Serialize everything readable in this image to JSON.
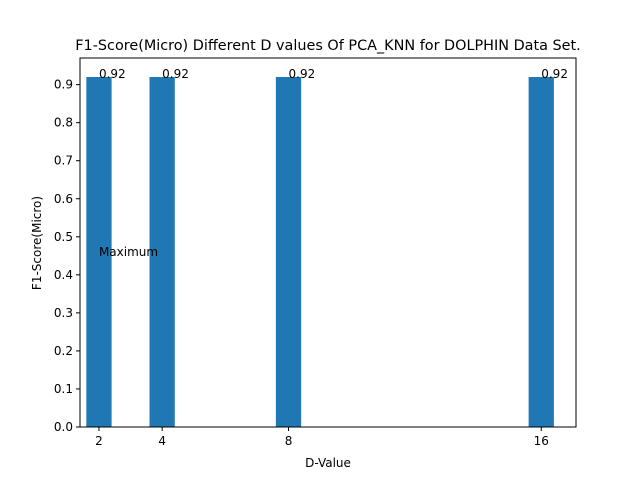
{
  "chart_data": {
    "type": "bar",
    "title": "F1-Score(Micro) Different D values Of PCA_KNN for DOLPHIN Data Set.",
    "xlabel": "D-Value",
    "ylabel": "F1-Score(Micro)",
    "x": [
      2,
      4,
      8,
      16
    ],
    "x_tick_labels": [
      "2",
      "4",
      "8",
      "16"
    ],
    "values": [
      0.92,
      0.92,
      0.92,
      0.92
    ],
    "data_labels": [
      "0.92",
      "0.92",
      "0.92",
      "0.92"
    ],
    "xlim": [
      1.4,
      17.1
    ],
    "ylim": [
      0,
      0.97
    ],
    "y_ticks": [
      0.0,
      0.1,
      0.2,
      0.3,
      0.4,
      0.5,
      0.6,
      0.7,
      0.8,
      0.9
    ],
    "y_tick_labels": [
      "0.0",
      "0.1",
      "0.2",
      "0.3",
      "0.4",
      "0.5",
      "0.6",
      "0.7",
      "0.8",
      "0.9"
    ],
    "bar_width": 0.8,
    "annotations": [
      {
        "text": "Maximum",
        "x": 2,
        "y": 0.46
      }
    ],
    "grid": false,
    "legend": "none",
    "bar_color": "#1f77b4"
  }
}
